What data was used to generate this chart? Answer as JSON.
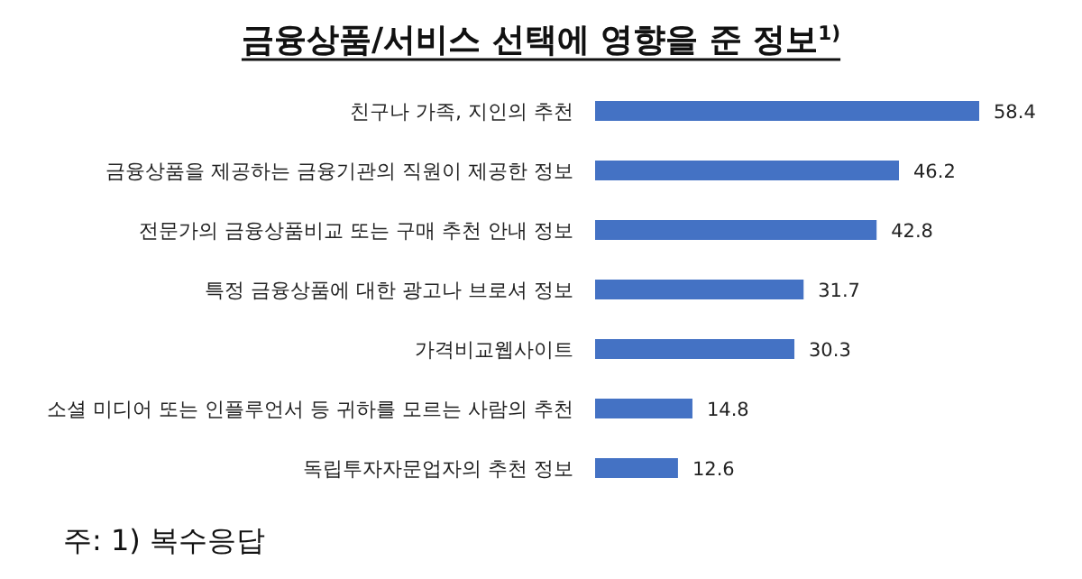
{
  "chart_data": {
    "type": "bar",
    "orientation": "horizontal",
    "title": "금융상품/서비스 선택에 영향을 준 정보$^{1)}$",
    "categories": [
      "친구나 가족, 지인의 추천",
      "금융상품을 제공하는 금융기관의 직원이 제공한 정보",
      "전문가의 금융상품비교 또는 구매 추천 안내 정보",
      "특정 금융상품에 대한 광고나 브로셔 정보",
      "가격비교웹사이트",
      "소셜 미디어 또는 인플루언서 등 귀하를 모르는 사람의 추천",
      "독립투자자문업자의 추천 정보"
    ],
    "values": [
      58.4,
      46.2,
      42.8,
      31.7,
      30.3,
      14.8,
      12.6
    ],
    "color": "#4472c4",
    "data_labels": true,
    "annotations": [
      "주: 1) 복수응답"
    ]
  }
}
